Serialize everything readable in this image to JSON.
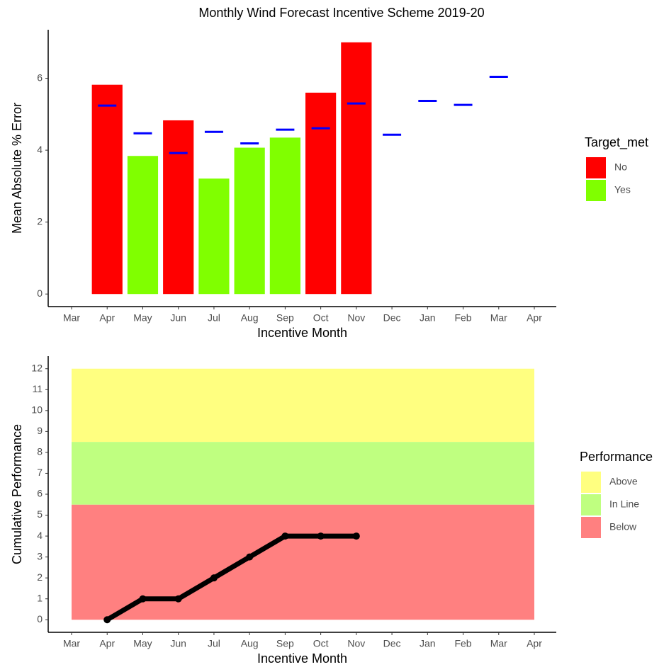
{
  "chart_data": [
    {
      "type": "bar",
      "title": "Monthly Wind Forecast Incentive Scheme 2019-20",
      "x_label": "Incentive Month",
      "y_label": "Mean Absolute % Error",
      "categories": [
        "Mar",
        "Apr",
        "May",
        "Jun",
        "Jul",
        "Aug",
        "Sep",
        "Oct",
        "Nov",
        "Dec",
        "Jan",
        "Feb",
        "Mar",
        "Apr"
      ],
      "legend_title": "Target_met",
      "series": [
        {
          "name": "No",
          "color": "#ff0000",
          "values": [
            null,
            5.82,
            null,
            4.83,
            null,
            null,
            null,
            5.6,
            7.0,
            null,
            null,
            null,
            null,
            null
          ]
        },
        {
          "name": "Yes",
          "color": "#80ff00",
          "values": [
            null,
            null,
            3.84,
            null,
            3.21,
            4.07,
            4.35,
            null,
            null,
            null,
            null,
            null,
            null,
            null
          ]
        }
      ],
      "target": {
        "color": "#0000ff",
        "values": [
          null,
          5.24,
          4.47,
          3.92,
          4.51,
          4.19,
          4.57,
          4.61,
          5.3,
          4.43,
          5.37,
          5.26,
          6.04,
          null
        ]
      },
      "ylim": [
        -0.35,
        7.35
      ],
      "yticks": [
        0,
        2,
        4,
        6
      ],
      "grid": false
    },
    {
      "type": "line",
      "x_label": "Incentive Month",
      "y_label": "Cumulative Performance",
      "categories": [
        "Mar",
        "Apr",
        "May",
        "Jun",
        "Jul",
        "Aug",
        "Sep",
        "Oct",
        "Nov",
        "Dec",
        "Jan",
        "Feb",
        "Mar",
        "Apr"
      ],
      "legend_title": "Performance",
      "bands": [
        {
          "name": "Above",
          "color": "#ffff80",
          "range": [
            8.5,
            12
          ]
        },
        {
          "name": "In Line",
          "color": "#bfff80",
          "range": [
            5.5,
            8.5
          ]
        },
        {
          "name": "Below",
          "color": "#ff8080",
          "range": [
            0,
            5.5
          ]
        }
      ],
      "series": [
        {
          "color": "#000000",
          "values": [
            null,
            0,
            1,
            1,
            2,
            3,
            4,
            4,
            4,
            null,
            null,
            null,
            null,
            null
          ]
        }
      ],
      "ylim": [
        -0.6,
        12.6
      ],
      "yticks": [
        0,
        1,
        2,
        3,
        4,
        5,
        6,
        7,
        8,
        9,
        10,
        11,
        12
      ],
      "grid": false
    }
  ]
}
